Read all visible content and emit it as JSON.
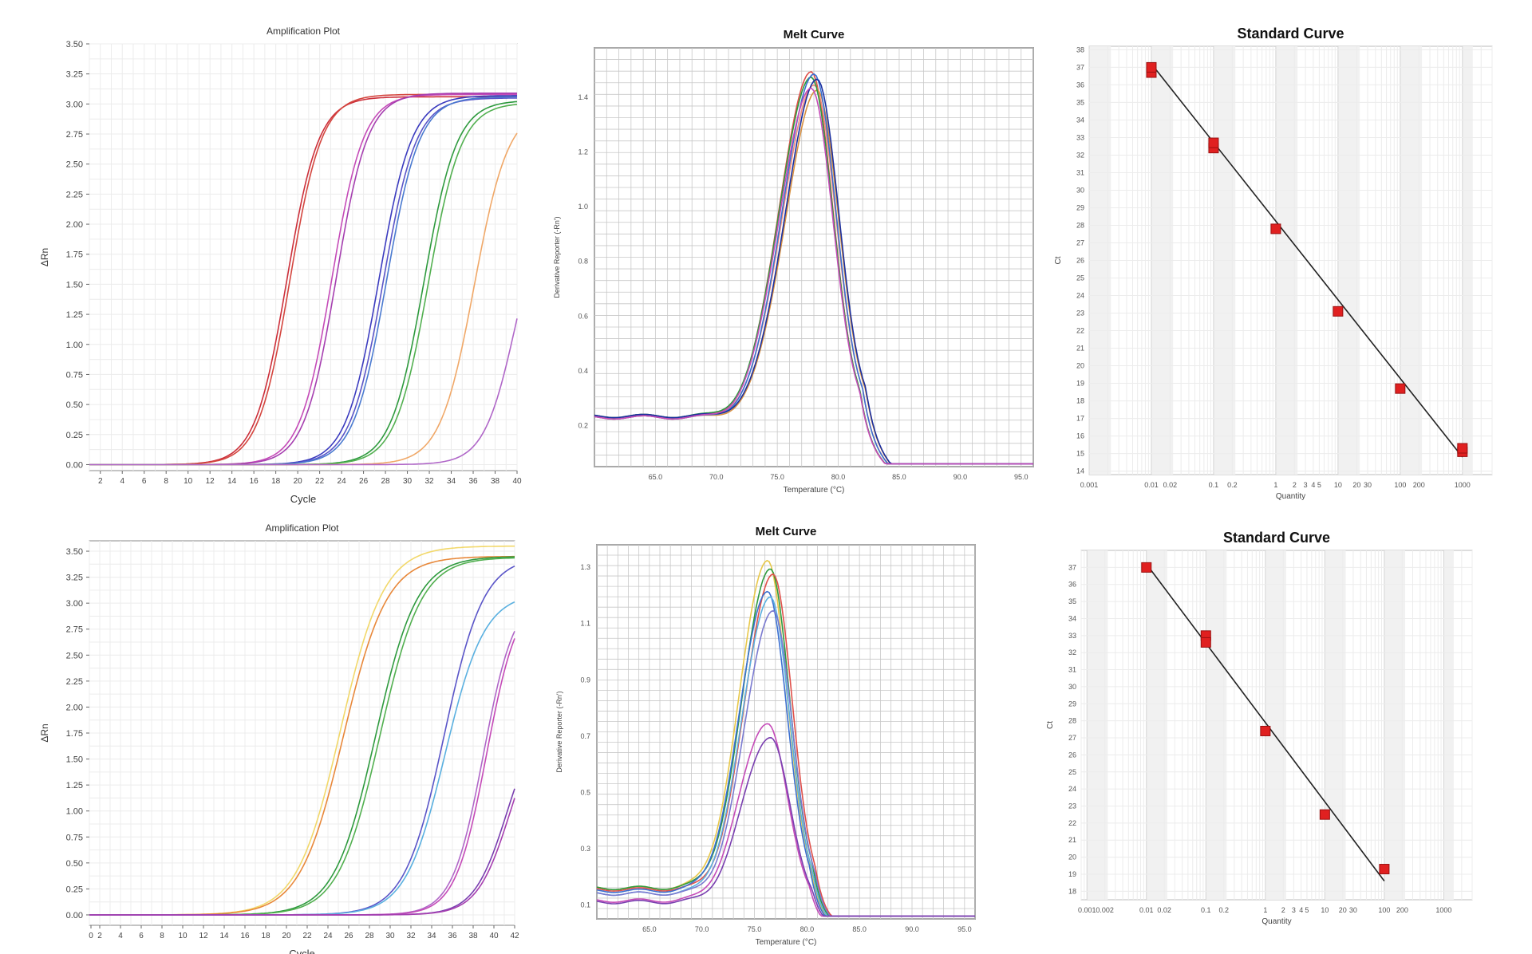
{
  "chart_data": [
    {
      "type": "line",
      "title": "Amplification Plot",
      "xlabel": "Cycle",
      "ylabel": "ΔRn",
      "xlim": [
        1,
        40
      ],
      "ylim": [
        -0.05,
        3.5
      ],
      "xticks": [
        "2",
        "4",
        "6",
        "8",
        "10",
        "12",
        "14",
        "16",
        "18",
        "20",
        "22",
        "24",
        "26",
        "28",
        "30",
        "32",
        "34",
        "36",
        "38",
        "40"
      ],
      "yticks": [
        "0.00",
        "0.25",
        "0.50",
        "0.75",
        "1.00",
        "1.25",
        "1.50",
        "1.75",
        "2.00",
        "2.25",
        "2.50",
        "2.75",
        "3.00",
        "3.25",
        "3.50"
      ],
      "grid": true,
      "series": [
        {
          "color": "#cc2f3a",
          "plateau": 3.06,
          "midpoint": 19.0,
          "slope": 1.45
        },
        {
          "color": "#d4463f",
          "plateau": 3.08,
          "midpoint": 19.3,
          "slope": 1.45
        },
        {
          "color": "#c54bb8",
          "plateau": 3.08,
          "midpoint": 23.1,
          "slope": 1.45
        },
        {
          "color": "#a63fb0",
          "plateau": 3.09,
          "midpoint": 23.5,
          "slope": 1.45
        },
        {
          "color": "#3b3bbf",
          "plateau": 3.07,
          "midpoint": 27.4,
          "slope": 1.5
        },
        {
          "color": "#5a55c8",
          "plateau": 3.05,
          "midpoint": 27.8,
          "slope": 1.5
        },
        {
          "color": "#4a7ad0",
          "plateau": 3.06,
          "midpoint": 28.1,
          "slope": 1.5
        },
        {
          "color": "#2e9a3e",
          "plateau": 3.03,
          "midpoint": 31.5,
          "slope": 1.5
        },
        {
          "color": "#52b050",
          "plateau": 3.01,
          "midpoint": 31.9,
          "slope": 1.5
        },
        {
          "color": "#f0a868",
          "plateau": 2.98,
          "midpoint": 36.1,
          "slope": 1.55
        },
        {
          "color": "#b067c8",
          "plateau": 2.35,
          "midpoint": 39.9,
          "slope": 1.45
        }
      ]
    },
    {
      "type": "line",
      "title": "Melt Curve",
      "xlabel": "Temperature (°C)",
      "ylabel": "Derivative Reporter (-Rn')",
      "xlim": [
        60,
        96
      ],
      "ylim": [
        0.05,
        1.58
      ],
      "xticks": [
        "65.0",
        "70.0",
        "75.0",
        "80.0",
        "85.0",
        "90.0",
        "95.0"
      ],
      "yticks": [
        "0.2",
        "0.4",
        "0.6",
        "0.8",
        "1.0",
        "1.2",
        "1.4"
      ],
      "grid": true,
      "peak_temperature": 78.0,
      "series": [
        {
          "color": "#e0504a",
          "peak": 1.49,
          "baseline": 0.23
        },
        {
          "color": "#f08a7a",
          "peak": 1.44,
          "baseline": 0.235
        },
        {
          "color": "#d89040",
          "peak": 1.42,
          "baseline": 0.23
        },
        {
          "color": "#2e9a3e",
          "peak": 1.47,
          "baseline": 0.235
        },
        {
          "color": "#3b6fd0",
          "peak": 1.48,
          "baseline": 0.23
        },
        {
          "color": "#1a2fa0",
          "peak": 1.46,
          "baseline": 0.235
        },
        {
          "color": "#c54bb8",
          "peak": 1.43,
          "baseline": 0.23
        }
      ]
    },
    {
      "type": "scatter",
      "title": "Standard Curve",
      "xlabel": "Quantity",
      "ylabel": "Ct",
      "xscale": "log",
      "xlim": [
        0.001,
        3000
      ],
      "ylim": [
        13.8,
        38.2
      ],
      "xticks": [
        {
          "value": 0.001,
          "label": "0.001"
        },
        {
          "value": 0.01,
          "label": "0.01"
        },
        {
          "value": 0.02,
          "label": "0.02"
        },
        {
          "value": 0.1,
          "label": "0.1"
        },
        {
          "value": 0.2,
          "label": "0.2"
        },
        {
          "value": 1,
          "label": "1"
        },
        {
          "value": 2,
          "label": "2"
        },
        {
          "value": 3,
          "label": "3"
        },
        {
          "value": 4,
          "label": "4"
        },
        {
          "value": 5,
          "label": "5"
        },
        {
          "value": 10,
          "label": "10"
        },
        {
          "value": 20,
          "label": "20"
        },
        {
          "value": 30,
          "label": "30"
        },
        {
          "value": 100,
          "label": "100"
        },
        {
          "value": 200,
          "label": "200"
        },
        {
          "value": 1000,
          "label": "1000"
        }
      ],
      "yticks": [
        "14",
        "15",
        "16",
        "17",
        "18",
        "19",
        "20",
        "21",
        "22",
        "23",
        "24",
        "25",
        "26",
        "27",
        "28",
        "29",
        "30",
        "31",
        "32",
        "33",
        "34",
        "35",
        "36",
        "37",
        "38"
      ],
      "points": [
        {
          "x": 0.01,
          "y": 36.7
        },
        {
          "x": 0.01,
          "y": 37.0
        },
        {
          "x": 0.1,
          "y": 32.4
        },
        {
          "x": 0.1,
          "y": 32.7
        },
        {
          "x": 1,
          "y": 27.8
        },
        {
          "x": 10,
          "y": 23.1
        },
        {
          "x": 100,
          "y": 18.7
        },
        {
          "x": 1000,
          "y": 15.1
        },
        {
          "x": 1000,
          "y": 15.3
        }
      ],
      "fit": {
        "x": [
          0.01,
          1000
        ],
        "y": [
          37.2,
          14.8
        ]
      }
    },
    {
      "type": "line",
      "title": "Amplification Plot",
      "xlabel": "Cycle",
      "ylabel": "ΔRn",
      "xlim": [
        1,
        42
      ],
      "ylim": [
        -0.1,
        3.6
      ],
      "xticks": [
        "0",
        "2",
        "4",
        "6",
        "8",
        "10",
        "12",
        "14",
        "16",
        "18",
        "20",
        "22",
        "24",
        "26",
        "28",
        "30",
        "32",
        "34",
        "36",
        "38",
        "40",
        "42"
      ],
      "yticks": [
        "0.00",
        "0.25",
        "0.50",
        "0.75",
        "1.00",
        "1.25",
        "1.50",
        "1.75",
        "2.00",
        "2.25",
        "2.50",
        "2.75",
        "3.00",
        "3.25",
        "3.50"
      ],
      "grid": true,
      "series": [
        {
          "color": "#f2d86a",
          "plateau": 3.55,
          "midpoint": 25.2,
          "slope": 2.1
        },
        {
          "color": "#e8883a",
          "plateau": 3.45,
          "midpoint": 25.5,
          "slope": 2.1
        },
        {
          "color": "#2e9a3e",
          "plateau": 3.45,
          "midpoint": 28.6,
          "slope": 2.0
        },
        {
          "color": "#52b050",
          "plateau": 3.44,
          "midpoint": 29.0,
          "slope": 2.0
        },
        {
          "color": "#5a55c8",
          "plateau": 3.45,
          "midpoint": 35.2,
          "slope": 1.9
        },
        {
          "color": "#5ab0e0",
          "plateau": 3.1,
          "midpoint": 35.3,
          "slope": 1.9
        },
        {
          "color": "#b067c8",
          "plateau": 3.1,
          "midpoint": 39.0,
          "slope": 1.5
        },
        {
          "color": "#c54bb8",
          "plateau": 3.1,
          "midpoint": 39.3,
          "slope": 1.5
        },
        {
          "color": "#7a3fb0",
          "plateau": 2.0,
          "midpoint": 41.3,
          "slope": 1.6
        },
        {
          "color": "#a63fb0",
          "plateau": 2.0,
          "midpoint": 41.6,
          "slope": 1.6
        }
      ]
    },
    {
      "type": "line",
      "title": "Melt Curve",
      "xlabel": "Temperature (°C)",
      "ylabel": "Derivative Reporter (-Rn')",
      "xlim": [
        60,
        96
      ],
      "ylim": [
        0.05,
        1.38
      ],
      "xticks": [
        "65.0",
        "70.0",
        "75.0",
        "80.0",
        "85.0",
        "90.0",
        "95.0"
      ],
      "yticks": [
        "0.1",
        "0.3",
        "0.5",
        "0.7",
        "0.9",
        "1.1",
        "1.3"
      ],
      "grid": true,
      "peak_temperature": 76.5,
      "series": [
        {
          "color": "#e8c84a",
          "peak": 1.33,
          "baseline": 0.16
        },
        {
          "color": "#2e9a3e",
          "peak": 1.3,
          "baseline": 0.16
        },
        {
          "color": "#e0504a",
          "peak": 1.28,
          "baseline": 0.155
        },
        {
          "color": "#3b6fd0",
          "peak": 1.22,
          "baseline": 0.15
        },
        {
          "color": "#5ab0e0",
          "peak": 1.2,
          "baseline": 0.14
        },
        {
          "color": "#7a7ad0",
          "peak": 1.15,
          "baseline": 0.14
        },
        {
          "color": "#c54bb8",
          "peak": 0.75,
          "baseline": 0.115
        },
        {
          "color": "#7a3fb0",
          "peak": 0.7,
          "baseline": 0.11
        }
      ]
    },
    {
      "type": "scatter",
      "title": "Standard Curve",
      "xlabel": "Quantity",
      "ylabel": "Ct",
      "xscale": "log",
      "xlim": [
        0.0008,
        3000
      ],
      "ylim": [
        17.5,
        38.0
      ],
      "xticks": [
        {
          "value": 0.001,
          "label": "0.001"
        },
        {
          "value": 0.002,
          "label": "0.002"
        },
        {
          "value": 0.01,
          "label": "0.01"
        },
        {
          "value": 0.02,
          "label": "0.02"
        },
        {
          "value": 0.1,
          "label": "0.1"
        },
        {
          "value": 0.2,
          "label": "0.2"
        },
        {
          "value": 1,
          "label": "1"
        },
        {
          "value": 2,
          "label": "2"
        },
        {
          "value": 3,
          "label": "3"
        },
        {
          "value": 4,
          "label": "4"
        },
        {
          "value": 5,
          "label": "5"
        },
        {
          "value": 10,
          "label": "10"
        },
        {
          "value": 20,
          "label": "20"
        },
        {
          "value": 30,
          "label": "30"
        },
        {
          "value": 100,
          "label": "100"
        },
        {
          "value": 200,
          "label": "200"
        },
        {
          "value": 1000,
          "label": "1000"
        }
      ],
      "yticks": [
        "18",
        "19",
        "20",
        "21",
        "22",
        "23",
        "24",
        "25",
        "26",
        "27",
        "28",
        "29",
        "30",
        "31",
        "32",
        "33",
        "34",
        "35",
        "36",
        "37"
      ],
      "points": [
        {
          "x": 0.01,
          "y": 37.0
        },
        {
          "x": 0.1,
          "y": 33.0
        },
        {
          "x": 0.1,
          "y": 32.6
        },
        {
          "x": 1,
          "y": 27.4
        },
        {
          "x": 10,
          "y": 22.5
        },
        {
          "x": 100,
          "y": 19.3
        }
      ],
      "fit": {
        "x": [
          0.01,
          100
        ],
        "y": [
          37.2,
          18.6
        ]
      }
    }
  ]
}
